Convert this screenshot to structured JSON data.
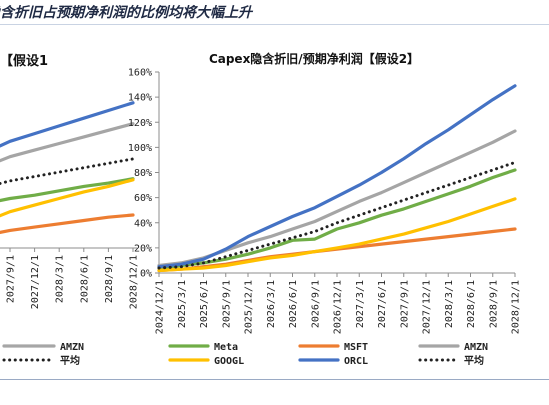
{
  "header": {
    "title": "隐含折旧占预期净利润的比例均将大幅上升"
  },
  "left_panel": {
    "title_fragment": "假设1】",
    "x_tick_labels": [
      "2027/9/1",
      "2027/12/1",
      "2028/3/1",
      "2028/6/1",
      "2028/9/1",
      "2028/12/1"
    ],
    "legend": [
      {
        "name": "AMZN",
        "color": "#a6a6a6",
        "style": "solid"
      },
      {
        "name": "平均",
        "color": "#1f1f1f",
        "style": "dotted"
      }
    ]
  },
  "chart_data": {
    "type": "line",
    "title": "Capex隐含折旧/预期净利润【假设2】",
    "xlabel": "",
    "ylabel": "",
    "ylim": [
      0,
      160
    ],
    "y_ticks": [
      "0%",
      "20%",
      "40%",
      "60%",
      "80%",
      "100%",
      "120%",
      "140%",
      "160%"
    ],
    "categories": [
      "2024/12/1",
      "2025/3/1",
      "2025/6/1",
      "2025/9/1",
      "2025/12/1",
      "2026/3/1",
      "2026/6/1",
      "2026/9/1",
      "2026/12/1",
      "2027/3/1",
      "2027/6/1",
      "2027/9/1",
      "2027/12/1",
      "2028/3/1",
      "2028/6/1",
      "2028/9/1",
      "2028/12/1"
    ],
    "grid": false,
    "legend_position": "bottom",
    "series": [
      {
        "name": "Meta",
        "color": "#70ad47",
        "style": "solid",
        "values": [
          4,
          6,
          8,
          11,
          15,
          20,
          26,
          27,
          35,
          40,
          46,
          51,
          57,
          63,
          69,
          76,
          82
        ]
      },
      {
        "name": "MSFT",
        "color": "#ed7d31",
        "style": "solid",
        "values": [
          2,
          3,
          5,
          7,
          10,
          13,
          15,
          17,
          19,
          21,
          23,
          25,
          27,
          29,
          31,
          33,
          35
        ]
      },
      {
        "name": "AMZN",
        "color": "#a5a5a5",
        "style": "solid",
        "values": [
          6,
          8,
          12,
          18,
          24,
          29,
          35,
          41,
          49,
          57,
          64,
          72,
          80,
          88,
          96,
          104,
          113
        ]
      },
      {
        "name": "GOOGL",
        "color": "#ffc000",
        "style": "solid",
        "values": [
          2,
          3,
          4,
          6,
          9,
          12,
          14,
          17,
          20,
          23,
          27,
          31,
          36,
          41,
          47,
          53,
          59
        ]
      },
      {
        "name": "ORCL",
        "color": "#4472c4",
        "style": "solid",
        "values": [
          5,
          7,
          11,
          19,
          29,
          37,
          45,
          52,
          61,
          70,
          80,
          91,
          103,
          114,
          126,
          138,
          149
        ]
      },
      {
        "name": "平均",
        "color": "#222222",
        "style": "dotted",
        "values": [
          4,
          5,
          8,
          13,
          18,
          23,
          28,
          33,
          40,
          46,
          52,
          58,
          64,
          70,
          76,
          82,
          88
        ]
      }
    ]
  },
  "left_chart_data": {
    "type": "line",
    "categories": [
      "2027/9/1",
      "2027/12/1",
      "2028/3/1",
      "2028/6/1",
      "2028/9/1",
      "2028/12/1"
    ],
    "series": [
      {
        "name": "ORCL",
        "color": "#4472c4",
        "style": "solid",
        "values": [
          97,
          104,
          111,
          118,
          125,
          132
        ]
      },
      {
        "name": "AMZN",
        "color": "#a5a5a5",
        "style": "solid",
        "values": [
          83,
          89,
          95,
          101,
          107,
          113
        ]
      },
      {
        "name": "平均",
        "color": "#222222",
        "style": "dotted",
        "values": [
          61,
          65,
          69,
          73,
          77,
          81
        ]
      },
      {
        "name": "Meta",
        "color": "#70ad47",
        "style": "solid",
        "values": [
          45,
          48,
          52,
          56,
          59,
          63
        ]
      },
      {
        "name": "GOOGL",
        "color": "#ffc000",
        "style": "solid",
        "values": [
          33,
          39,
          45,
          51,
          56,
          62
        ]
      },
      {
        "name": "MSFT",
        "color": "#ed7d31",
        "style": "solid",
        "values": [
          16,
          19,
          22,
          25,
          28,
          30
        ]
      }
    ]
  }
}
